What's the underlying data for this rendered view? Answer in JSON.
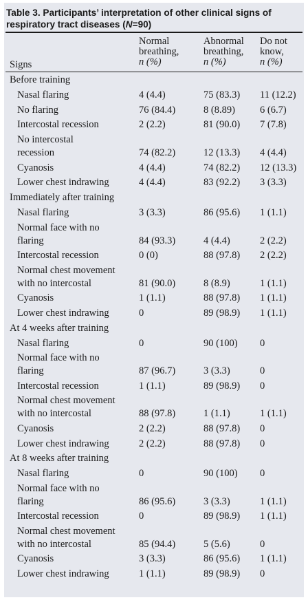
{
  "table": {
    "caption_prefix": "Table 3. Participants’ interpretation of other clinical signs of respiratory tract diseases (",
    "caption_n": "N",
    "caption_suffix": "=90)",
    "headers": {
      "signs": "Signs",
      "normal": [
        "Normal",
        "breathing,",
        "n (%)"
      ],
      "abnormal": [
        "Abnormal",
        "breathing,",
        "n (%)"
      ],
      "dontknow": [
        "Do not",
        "know,",
        "n (%)"
      ]
    },
    "sections": [
      {
        "title": "Before training",
        "rows": [
          {
            "sign": [
              "Nasal flaring"
            ],
            "normal": "4 (4.4)",
            "abnormal": "75 (83.3)",
            "dontknow": "11 (12.2)"
          },
          {
            "sign": [
              "No flaring"
            ],
            "normal": "76 (84.4)",
            "abnormal": "8 (8.89)",
            "dontknow": "6 (6.7)"
          },
          {
            "sign": [
              "Intercostal recession"
            ],
            "normal": "2 (2.2)",
            "abnormal": "81 (90.0)",
            "dontknow": "7 (7.8)"
          },
          {
            "sign": [
              "No intercostal",
              "recession"
            ],
            "normal": "74 (82.2)",
            "abnormal": "12 (13.3)",
            "dontknow": "4 (4.4)"
          },
          {
            "sign": [
              "Cyanosis"
            ],
            "normal": "4 (4.4)",
            "abnormal": "74 (82.2)",
            "dontknow": "12 (13.3)"
          },
          {
            "sign": [
              "Lower chest indrawing"
            ],
            "normal": "4 (4.4)",
            "abnormal": "83 (92.2)",
            "dontknow": "3 (3.3)"
          }
        ]
      },
      {
        "title": "Immediately after training",
        "rows": [
          {
            "sign": [
              "Nasal flaring"
            ],
            "normal": "3 (3.3)",
            "abnormal": "86 (95.6)",
            "dontknow": "1 (1.1)"
          },
          {
            "sign": [
              "Normal face with no",
              "flaring"
            ],
            "normal": "84 (93.3)",
            "abnormal": "4 (4.4)",
            "dontknow": "2 (2.2)"
          },
          {
            "sign": [
              "Intercostal recession"
            ],
            "normal": "0 (0)",
            "abnormal": "88 (97.8)",
            "dontknow": "2 (2.2)"
          },
          {
            "sign": [
              "Normal chest movement",
              "with no intercostal"
            ],
            "normal": "81 (90.0)",
            "abnormal": "8 (8.9)",
            "dontknow": "1 (1.1)"
          },
          {
            "sign": [
              "Cyanosis"
            ],
            "normal": "1 (1.1)",
            "abnormal": "88 (97.8)",
            "dontknow": "1 (1.1)"
          },
          {
            "sign": [
              "Lower chest indrawing"
            ],
            "normal": "0",
            "abnormal": "89 (98.9)",
            "dontknow": "1 (1.1)"
          }
        ]
      },
      {
        "title": "At 4 weeks after training",
        "rows": [
          {
            "sign": [
              "Nasal flaring"
            ],
            "normal": "0",
            "abnormal": "90 (100)",
            "dontknow": "0"
          },
          {
            "sign": [
              "Normal face with no",
              "flaring"
            ],
            "normal": "87 (96.7)",
            "abnormal": "3 (3.3)",
            "dontknow": "0"
          },
          {
            "sign": [
              "Intercostal recession"
            ],
            "normal": "1 (1.1)",
            "abnormal": "89 (98.9)",
            "dontknow": "0"
          },
          {
            "sign": [
              "Normal chest movement",
              "with no intercostal"
            ],
            "normal": "88 (97.8)",
            "abnormal": "1 (1.1)",
            "dontknow": "1 (1.1)"
          },
          {
            "sign": [
              "Cyanosis"
            ],
            "normal": "2 (2.2)",
            "abnormal": "88 (97.8)",
            "dontknow": "0"
          },
          {
            "sign": [
              "Lower chest indrawing"
            ],
            "normal": "2 (2.2)",
            "abnormal": "88 (97.8)",
            "dontknow": "0"
          }
        ]
      },
      {
        "title": "At 8 weeks after training",
        "rows": [
          {
            "sign": [
              "Nasal flaring"
            ],
            "normal": "0",
            "abnormal": "90 (100)",
            "dontknow": "0"
          },
          {
            "sign": [
              "Normal face with no",
              "flaring"
            ],
            "normal": "86 (95.6)",
            "abnormal": "3 (3.3)",
            "dontknow": "1 (1.1)"
          },
          {
            "sign": [
              "Intercostal recession"
            ],
            "normal": "0",
            "abnormal": "89 (98.9)",
            "dontknow": "1 (1.1)"
          },
          {
            "sign": [
              "Normal chest movement",
              "with no intercostal"
            ],
            "normal": "85 (94.4)",
            "abnormal": "5 (5.6)",
            "dontknow": "0"
          },
          {
            "sign": [
              "Cyanosis"
            ],
            "normal": "3 (3.3)",
            "abnormal": "86 (95.6)",
            "dontknow": "1 (1.1)"
          },
          {
            "sign": [
              "Lower chest indrawing"
            ],
            "normal": "1 (1.1)",
            "abnormal": "89 (98.9)",
            "dontknow": "0"
          }
        ]
      }
    ]
  },
  "colors": {
    "panel_bg": "#e6e8ee",
    "text": "#1a1a1a"
  }
}
